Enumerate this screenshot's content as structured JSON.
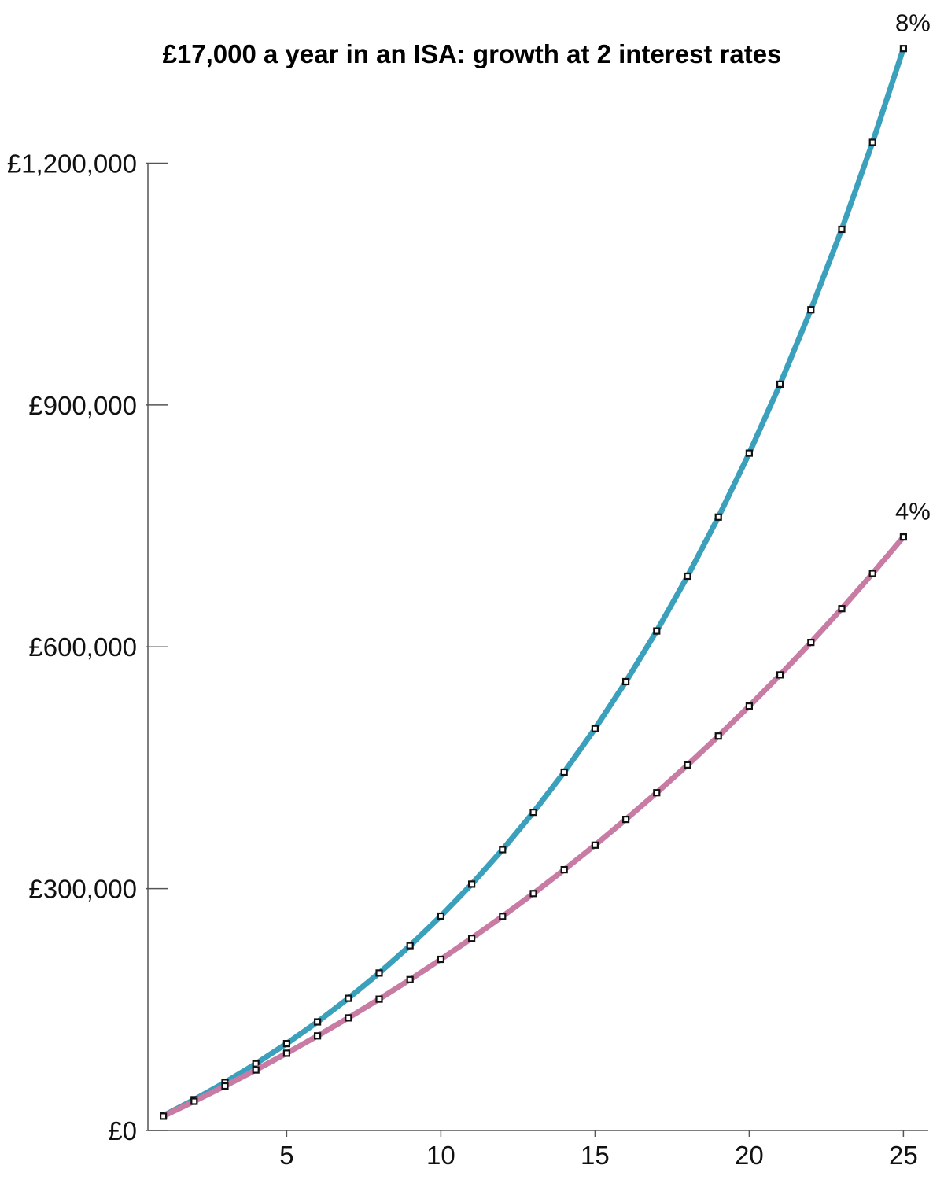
{
  "chart_data": {
    "type": "line",
    "title": "£17,000 a year in an ISA: growth at 2 interest rates",
    "xlabel": "",
    "ylabel": "",
    "x": [
      1,
      2,
      3,
      4,
      5,
      6,
      7,
      8,
      9,
      10,
      11,
      12,
      13,
      14,
      15,
      16,
      17,
      18,
      19,
      20,
      21,
      22,
      23,
      24,
      25
    ],
    "xlim": [
      0.5,
      25.5
    ],
    "ylim": [
      0,
      1300000
    ],
    "x_ticks": [
      {
        "value": 5,
        "label": "5"
      },
      {
        "value": 10,
        "label": "10"
      },
      {
        "value": 15,
        "label": "15"
      },
      {
        "value": 20,
        "label": "20"
      },
      {
        "value": 25,
        "label": "25"
      }
    ],
    "y_ticks": [
      {
        "value": 0,
        "label": "£0"
      },
      {
        "value": 300000,
        "label": "£300,000"
      },
      {
        "value": 600000,
        "label": "£600,000"
      },
      {
        "value": 900000,
        "label": "£900,000"
      },
      {
        "value": 1200000,
        "label": "£1,200,000"
      }
    ],
    "grid": false,
    "legend": "none",
    "series": [
      {
        "name": "8%",
        "color": "#3aa0bc",
        "values": [
          18360,
          38189,
          59604,
          82733,
          107711,
          134688,
          163823,
          195289,
          229272,
          265974,
          305612,
          348421,
          394655,
          444588,
          498515,
          556757,
          619658,
          687591,
          760958,
          840194,
          925770,
          1018191,
          1118006,
          1225807,
          1342232
        ]
      },
      {
        "name": "4%",
        "color": "#c87ca4",
        "values": [
          17680,
          36067,
          55190,
          75077,
          95760,
          117271,
          139642,
          162908,
          187104,
          212268,
          238439,
          265656,
          293962,
          323400,
          354016,
          385857,
          418971,
          453410,
          489226,
          526475,
          565214,
          605502,
          647402,
          690978,
          736297
        ]
      }
    ]
  }
}
